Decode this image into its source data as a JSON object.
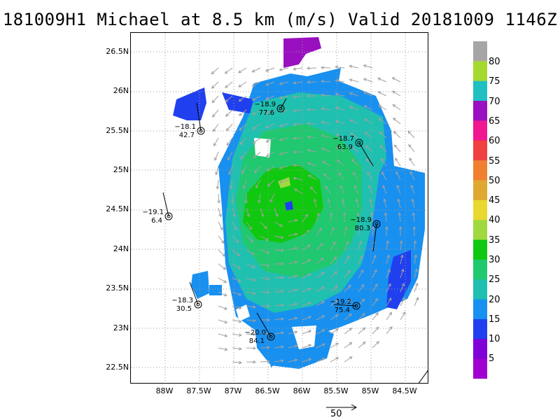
{
  "title": "181009H1 Michael at 8.5 km (m/s) Valid 20181009 1146Z",
  "map": {
    "y_ticks": [
      "26.5N",
      "26N",
      "25.5N",
      "25N",
      "24.5N",
      "24N",
      "23.5N",
      "23N",
      "22.5N"
    ],
    "x_ticks": [
      "88W",
      "87.5W",
      "87W",
      "86.5W",
      "86W",
      "85.5W",
      "85W",
      "84.5W"
    ],
    "stations": [
      {
        "id": "st1",
        "temp": "−18.9",
        "wind": "77.6"
      },
      {
        "id": "st2",
        "temp": "−18.1",
        "wind": "42.7"
      },
      {
        "id": "st3",
        "temp": "−18.7",
        "wind": "63.9"
      },
      {
        "id": "st4",
        "temp": "−19.1",
        "wind": "6.4"
      },
      {
        "id": "st5",
        "temp": "−18.9",
        "wind": "80.3"
      },
      {
        "id": "st6",
        "temp": "−18.3",
        "wind": "30.5"
      },
      {
        "id": "st7",
        "temp": "−19.2",
        "wind": "75.4"
      },
      {
        "id": "st8",
        "temp": "−20.0",
        "wind": "84.1"
      }
    ]
  },
  "colorbar": {
    "labels": [
      "80",
      "75",
      "70",
      "65",
      "60",
      "55",
      "50",
      "45",
      "40",
      "35",
      "30",
      "25",
      "20",
      "15",
      "10",
      "5"
    ],
    "colors": [
      "#a6a6a6",
      "#a6d930",
      "#20c0c0",
      "#9a10c0",
      "#f01890",
      "#f04040",
      "#f08030",
      "#e0a830",
      "#e8d830",
      "#a0d840",
      "#10c810",
      "#20c870",
      "#20c0b0",
      "#1890f0",
      "#2040f0",
      "#8000d8",
      "#a000d0"
    ]
  },
  "reference_vector": {
    "label": "50"
  },
  "colors": {
    "arrow": "#a0a0a0",
    "frame": "#000000"
  }
}
